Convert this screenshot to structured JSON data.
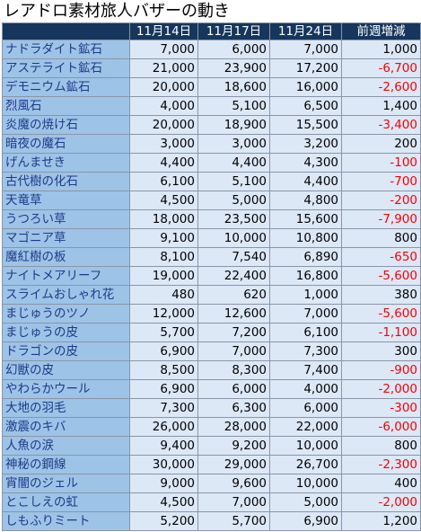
{
  "title": "レアドロ素材旅人バザーの動き",
  "columns": [
    "",
    "11月14日",
    "11月17日",
    "11月24日",
    "前週増減"
  ],
  "rows": [
    {
      "name": "ナドラダイト鉱石",
      "v1": "7,000",
      "v2": "6,000",
      "v3": "7,000",
      "diff": "1,000",
      "negative": false
    },
    {
      "name": "アステライト鉱石",
      "v1": "21,000",
      "v2": "23,900",
      "v3": "17,200",
      "diff": "-6,700",
      "negative": true
    },
    {
      "name": "デモニウム鉱石",
      "v1": "20,000",
      "v2": "18,600",
      "v3": "16,000",
      "diff": "-2,600",
      "negative": true
    },
    {
      "name": "烈風石",
      "v1": "4,000",
      "v2": "5,100",
      "v3": "6,500",
      "diff": "1,400",
      "negative": false
    },
    {
      "name": "炎魔の焼け石",
      "v1": "20,000",
      "v2": "18,900",
      "v3": "15,500",
      "diff": "-3,400",
      "negative": true
    },
    {
      "name": "暗夜の魔石",
      "v1": "3,000",
      "v2": "3,000",
      "v3": "3,200",
      "diff": "200",
      "negative": false
    },
    {
      "name": "げんませき",
      "v1": "4,400",
      "v2": "4,400",
      "v3": "4,300",
      "diff": "-100",
      "negative": true
    },
    {
      "name": "古代樹の化石",
      "v1": "6,100",
      "v2": "5,100",
      "v3": "4,400",
      "diff": "-700",
      "negative": true
    },
    {
      "name": "天竜草",
      "v1": "4,500",
      "v2": "5,000",
      "v3": "4,800",
      "diff": "-200",
      "negative": true
    },
    {
      "name": "うつろい草",
      "v1": "18,000",
      "v2": "23,500",
      "v3": "15,600",
      "diff": "-7,900",
      "negative": true
    },
    {
      "name": "マゴニア草",
      "v1": "9,100",
      "v2": "10,000",
      "v3": "10,800",
      "diff": "800",
      "negative": false
    },
    {
      "name": "魔紅樹の板",
      "v1": "8,100",
      "v2": "7,540",
      "v3": "6,890",
      "diff": "-650",
      "negative": true
    },
    {
      "name": "ナイトメアリーフ",
      "v1": "19,000",
      "v2": "22,400",
      "v3": "16,800",
      "diff": "-5,600",
      "negative": true
    },
    {
      "name": "スライムおしゃれ花",
      "v1": "480",
      "v2": "620",
      "v3": "1,000",
      "diff": "380",
      "negative": false
    },
    {
      "name": "まじゅうのツノ",
      "v1": "12,000",
      "v2": "12,600",
      "v3": "7,000",
      "diff": "-5,600",
      "negative": true
    },
    {
      "name": "まじゅうの皮",
      "v1": "5,700",
      "v2": "7,200",
      "v3": "6,100",
      "diff": "-1,100",
      "negative": true
    },
    {
      "name": "ドラゴンの皮",
      "v1": "6,900",
      "v2": "7,000",
      "v3": "7,300",
      "diff": "300",
      "negative": false
    },
    {
      "name": "幻獣の皮",
      "v1": "8,500",
      "v2": "8,300",
      "v3": "7,400",
      "diff": "-900",
      "negative": true
    },
    {
      "name": "やわらかウール",
      "v1": "6,900",
      "v2": "6,000",
      "v3": "4,000",
      "diff": "-2,000",
      "negative": true
    },
    {
      "name": "大地の羽毛",
      "v1": "7,300",
      "v2": "6,300",
      "v3": "6,000",
      "diff": "-300",
      "negative": true
    },
    {
      "name": "激震のキバ",
      "v1": "26,000",
      "v2": "28,000",
      "v3": "22,000",
      "diff": "-6,000",
      "negative": true
    },
    {
      "name": "人魚の涙",
      "v1": "9,400",
      "v2": "9,200",
      "v3": "10,000",
      "diff": "800",
      "negative": false
    },
    {
      "name": "神秘の鋼線",
      "v1": "30,000",
      "v2": "29,000",
      "v3": "26,700",
      "diff": "-2,300",
      "negative": true
    },
    {
      "name": "宵闇のジェル",
      "v1": "9,000",
      "v2": "9,600",
      "v3": "10,000",
      "diff": "400",
      "negative": false
    },
    {
      "name": "とこしえの虹",
      "v1": "4,500",
      "v2": "7,000",
      "v3": "5,000",
      "diff": "-2,000",
      "negative": true
    },
    {
      "name": "しもふりミート",
      "v1": "5,200",
      "v2": "5,700",
      "v3": "6,900",
      "diff": "1,200",
      "negative": false
    }
  ]
}
